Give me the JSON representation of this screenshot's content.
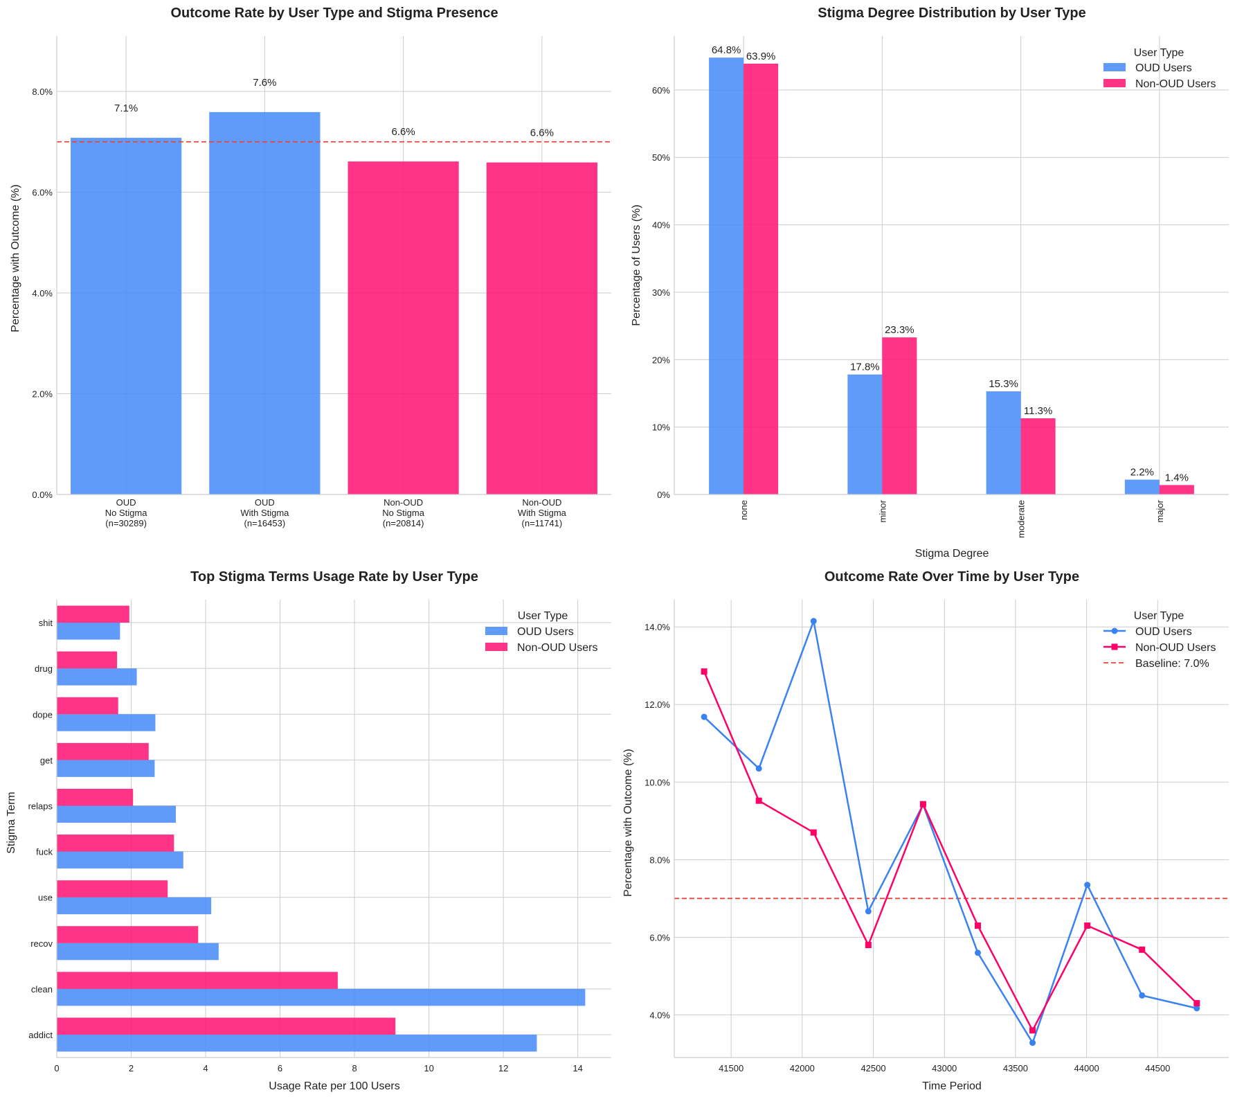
{
  "colors": {
    "oud": "#4a8cf8",
    "non_oud": "#ff1675",
    "baseline": "#e8443a"
  },
  "chart_data": [
    {
      "id": "outcome_by_type",
      "type": "bar",
      "title": "Outcome Rate by User Type and Stigma Presence",
      "xlabel": "",
      "ylabel": "Percentage with Outcome (%)",
      "categories": [
        [
          "OUD",
          "No Stigma",
          "(n=30289)"
        ],
        [
          "OUD",
          "With Stigma",
          "(n=16453)"
        ],
        [
          "Non-OUD",
          "No Stigma",
          "(n=20814)"
        ],
        [
          "Non-OUD",
          "With Stigma",
          "(n=11741)"
        ]
      ],
      "values": [
        7.08,
        7.59,
        6.61,
        6.59
      ],
      "value_labels": [
        "7.1%",
        "7.6%",
        "6.6%",
        "6.6%"
      ],
      "bar_groups": [
        "oud",
        "oud",
        "non_oud",
        "non_oud"
      ],
      "baseline": 7.0,
      "ylim": [
        0,
        9.1
      ],
      "yticks": [
        0,
        2,
        4,
        6,
        8
      ],
      "ytick_labels": [
        "0.0%",
        "2.0%",
        "4.0%",
        "6.0%",
        "8.0%"
      ],
      "grid": true
    },
    {
      "id": "stigma_degree",
      "type": "bar",
      "title": "Stigma Degree Distribution by User Type",
      "xlabel": "Stigma Degree",
      "ylabel": "Percentage of Users (%)",
      "categories": [
        "none",
        "minor",
        "moderate",
        "major"
      ],
      "series": [
        {
          "name": "OUD Users",
          "key": "oud",
          "values": [
            64.8,
            17.8,
            15.3,
            2.2
          ],
          "labels": [
            "64.8%",
            "17.8%",
            "15.3%",
            "2.2%"
          ]
        },
        {
          "name": "Non-OUD Users",
          "key": "non_oud",
          "values": [
            63.9,
            23.3,
            11.3,
            1.4
          ],
          "labels": [
            "63.9%",
            "23.3%",
            "11.3%",
            "1.4%"
          ]
        }
      ],
      "ylim": [
        0,
        68
      ],
      "yticks": [
        0,
        10,
        20,
        30,
        40,
        50,
        60
      ],
      "ytick_labels": [
        "0%",
        "10%",
        "20%",
        "30%",
        "40%",
        "50%",
        "60%"
      ],
      "legend_title": "User Type",
      "legend_position": "top-right",
      "grid": true
    },
    {
      "id": "stigma_terms",
      "type": "bar",
      "orientation": "horizontal",
      "title": "Top Stigma Terms Usage Rate by User Type",
      "xlabel": "Usage Rate per 100 Users",
      "ylabel": "Stigma Term",
      "categories": [
        "addict",
        "clean",
        "recov",
        "use",
        "fuck",
        "relaps",
        "get",
        "dope",
        "drug",
        "shit"
      ],
      "series": [
        {
          "name": "OUD Users",
          "key": "oud",
          "values": [
            12.9,
            14.2,
            4.35,
            4.15,
            3.4,
            3.2,
            2.63,
            2.65,
            2.15,
            1.7
          ]
        },
        {
          "name": "Non-OUD Users",
          "key": "non_oud",
          "values": [
            9.1,
            7.55,
            3.8,
            2.98,
            3.15,
            2.05,
            2.47,
            1.65,
            1.62,
            1.95
          ]
        }
      ],
      "xlim": [
        0,
        14.9
      ],
      "xticks": [
        0,
        2,
        4,
        6,
        8,
        10,
        12,
        14
      ],
      "xtick_labels": [
        "0",
        "2",
        "4",
        "6",
        "8",
        "10",
        "12",
        "14"
      ],
      "legend_title": "User Type",
      "legend_position": "top-right",
      "grid": true
    },
    {
      "id": "outcome_over_time",
      "type": "line",
      "title": "Outcome Rate Over Time by User Type",
      "xlabel": "Time Period",
      "ylabel": "Percentage with Outcome (%)",
      "x": [
        41310,
        41695,
        42080,
        42465,
        42850,
        43235,
        43620,
        44005,
        44390,
        44775
      ],
      "series": [
        {
          "name": "OUD Users",
          "key": "oud",
          "marker": "circle",
          "values": [
            11.68,
            10.35,
            14.15,
            6.67,
            9.42,
            5.6,
            3.28,
            7.35,
            4.5,
            4.17
          ]
        },
        {
          "name": "Non-OUD Users",
          "key": "non_oud",
          "marker": "square",
          "values": [
            12.85,
            9.52,
            8.7,
            5.8,
            9.43,
            6.3,
            3.6,
            6.3,
            5.68,
            4.3
          ]
        }
      ],
      "baseline": 7.0,
      "baseline_label": "Baseline: 7.0%",
      "xlim": [
        41100,
        45000
      ],
      "ylim": [
        2.9,
        14.7
      ],
      "xticks": [
        41500,
        42000,
        42500,
        43000,
        43500,
        44000,
        44500
      ],
      "xtick_labels": [
        "41500",
        "42000",
        "42500",
        "43000",
        "43500",
        "44000",
        "44500"
      ],
      "yticks": [
        4,
        6,
        8,
        10,
        12,
        14
      ],
      "ytick_labels": [
        "4.0%",
        "6.0%",
        "8.0%",
        "10.0%",
        "12.0%",
        "14.0%"
      ],
      "legend_title": "User Type",
      "legend_position": "top-right",
      "grid": true
    }
  ]
}
